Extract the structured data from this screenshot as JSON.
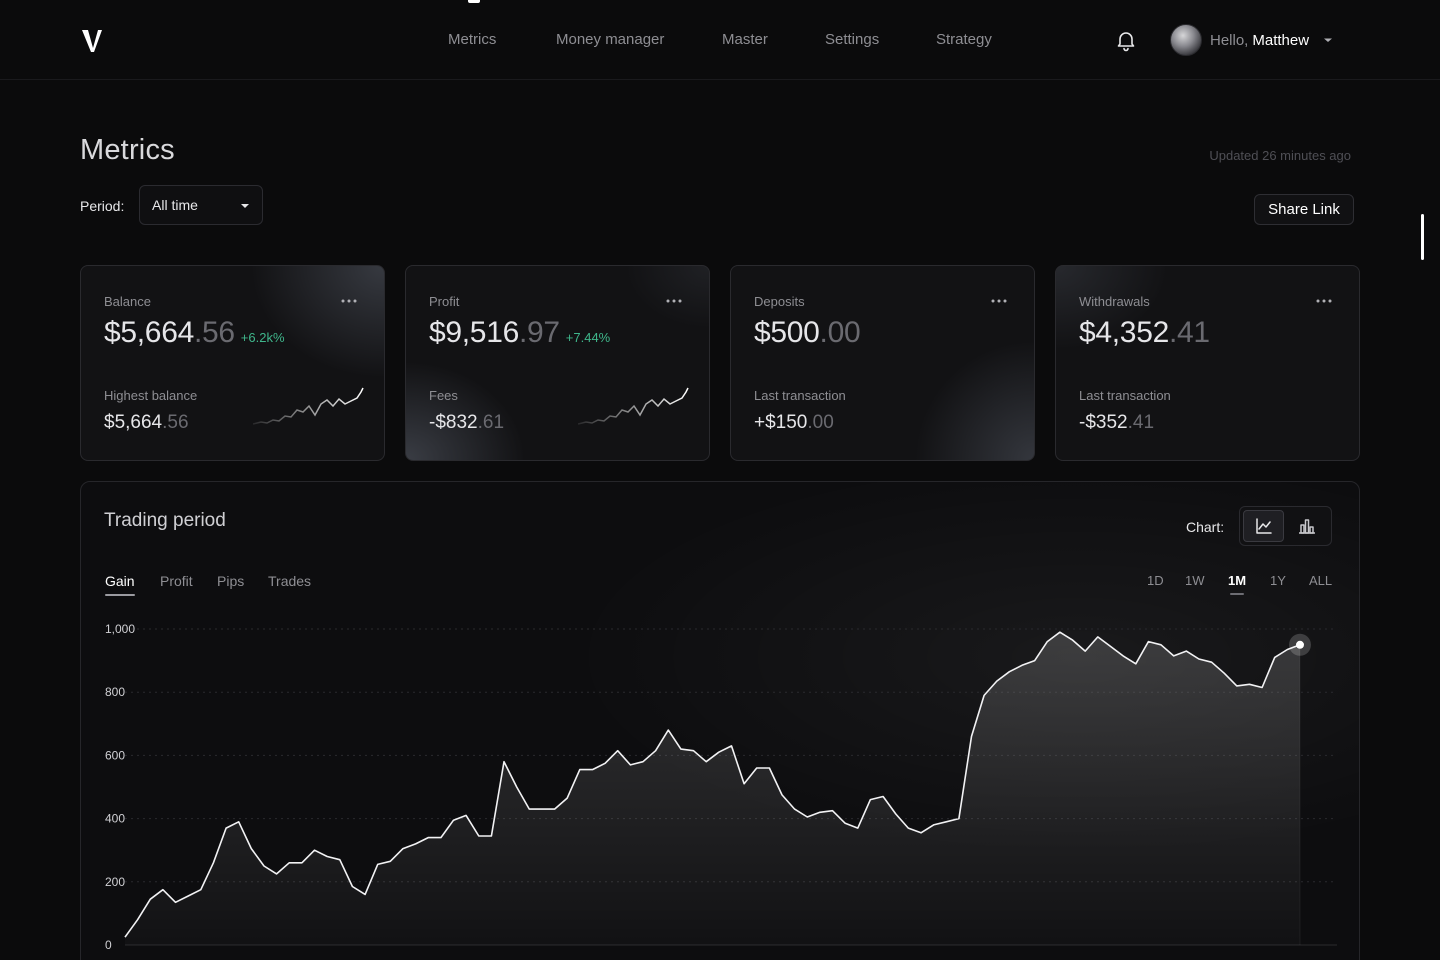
{
  "nav": {
    "items": [
      {
        "label": "Metrics",
        "active": true
      },
      {
        "label": "Money manager",
        "active": false
      },
      {
        "label": "Master",
        "active": false
      },
      {
        "label": "Settings",
        "active": false
      },
      {
        "label": "Strategy",
        "active": false
      }
    ],
    "icons": {
      "logo": "v-logo",
      "notifications": "bell-icon",
      "menu": "chevron-down-icon"
    }
  },
  "user": {
    "greeting": "Hello,",
    "name": "Matthew"
  },
  "page": {
    "title": "Metrics",
    "updated": "Updated 26 minutes ago",
    "period_label": "Period:",
    "period_value": "All time",
    "share_label": "Share Link"
  },
  "cards": [
    {
      "label": "Balance",
      "value_int": "$5,664",
      "value_dec": ".56",
      "change": "+6.2k%",
      "sub_label": "Highest balance",
      "sub_int": "$5,664",
      "sub_dec": ".56"
    },
    {
      "label": "Profit",
      "value_int": "$9,516",
      "value_dec": ".97",
      "change": "+7.44%",
      "sub_label": "Fees",
      "sub_int": "-$832",
      "sub_dec": ".61"
    },
    {
      "label": "Deposits",
      "value_int": "$500",
      "value_dec": ".00",
      "change": "",
      "sub_label": "Last transaction",
      "sub_int": "+$150",
      "sub_dec": ".00"
    },
    {
      "label": "Withdrawals",
      "value_int": "$4,352",
      "value_dec": ".41",
      "change": "",
      "sub_label": "Last transaction",
      "sub_int": "-$352",
      "sub_dec": ".41"
    }
  ],
  "trading": {
    "title": "Trading period",
    "chart_label": "Chart:",
    "chart_types": [
      {
        "icon": "line-chart-icon",
        "active": true
      },
      {
        "icon": "bar-chart-icon",
        "active": false
      }
    ],
    "tabs": [
      {
        "label": "Gain",
        "active": true
      },
      {
        "label": "Profit",
        "active": false
      },
      {
        "label": "Pips",
        "active": false
      },
      {
        "label": "Trades",
        "active": false
      }
    ],
    "ranges": [
      {
        "label": "1D",
        "active": false
      },
      {
        "label": "1W",
        "active": false
      },
      {
        "label": "1M",
        "active": true
      },
      {
        "label": "1Y",
        "active": false
      },
      {
        "label": "ALL",
        "active": false
      }
    ]
  },
  "chart_data": {
    "type": "area",
    "title": "",
    "xlabel": "",
    "ylabel": "",
    "ylim": [
      0,
      1000
    ],
    "yticks": [
      {
        "value": 0,
        "label": "0"
      },
      {
        "value": 200,
        "label": "200"
      },
      {
        "value": 400,
        "label": "400"
      },
      {
        "value": 600,
        "label": "600"
      },
      {
        "value": 800,
        "label": "800"
      },
      {
        "value": 1000,
        "label": "1,000"
      }
    ],
    "grid": true,
    "series": [
      {
        "values": [
          25,
          80,
          145,
          175,
          135,
          155,
          175,
          260,
          370,
          390,
          305,
          250,
          225,
          260,
          260,
          300,
          280,
          270,
          185,
          160,
          255,
          265,
          305,
          320,
          340,
          340,
          395,
          410,
          345,
          345,
          580,
          500,
          430,
          430,
          430,
          465,
          555,
          555,
          575,
          615,
          570,
          580,
          615,
          680,
          620,
          615,
          580,
          610,
          630,
          510,
          560,
          560,
          475,
          430,
          405,
          420,
          425,
          385,
          370,
          460,
          470,
          415,
          370,
          355,
          380,
          390,
          400,
          660,
          790,
          835,
          865,
          885,
          900,
          960,
          990,
          965,
          930,
          975,
          945,
          915,
          890,
          960,
          950,
          915,
          930,
          905,
          895,
          860,
          820,
          825,
          815,
          910,
          935,
          950
        ]
      }
    ]
  }
}
